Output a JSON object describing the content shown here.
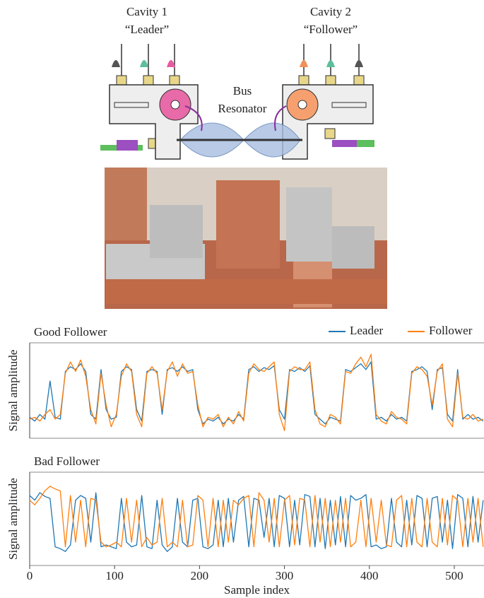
{
  "diagram": {
    "cavity1": {
      "title": "Cavity 1",
      "role": "“Leader”"
    },
    "cavity2": {
      "title": "Cavity 2",
      "role": "“Follower”"
    },
    "bus": {
      "line1": "Bus",
      "line2": "Resonator"
    }
  },
  "chart_data": [
    {
      "type": "line",
      "title": "Good Follower",
      "ylabel": "Signal amplitude",
      "legend": "upper right",
      "x": [
        0,
        6,
        12,
        18,
        24,
        30,
        36,
        42,
        48,
        54,
        60,
        66,
        72,
        78,
        84,
        90,
        96,
        102,
        108,
        114,
        120,
        126,
        132,
        138,
        144,
        150,
        156,
        162,
        168,
        174,
        180,
        186,
        192,
        198,
        204,
        210,
        216,
        222,
        228,
        234,
        240,
        246,
        252,
        258,
        264,
        270,
        276,
        282,
        288,
        294,
        300,
        306,
        312,
        318,
        324,
        330,
        336,
        342,
        348,
        354,
        360,
        366,
        372,
        378,
        384,
        390,
        396,
        402,
        408,
        414,
        420,
        426,
        432,
        438,
        444,
        450,
        456,
        462,
        468,
        474,
        480,
        486,
        492,
        498,
        504,
        510,
        516,
        522,
        528,
        534
      ],
      "xlim": [
        0,
        535
      ],
      "ylim": [
        0,
        1
      ],
      "series": [
        {
          "name": "Leader",
          "color": "#1f77b4",
          "values": [
            0.22,
            0.18,
            0.25,
            0.2,
            0.6,
            0.22,
            0.2,
            0.7,
            0.75,
            0.72,
            0.78,
            0.7,
            0.25,
            0.2,
            0.72,
            0.3,
            0.2,
            0.22,
            0.7,
            0.75,
            0.72,
            0.3,
            0.18,
            0.7,
            0.72,
            0.7,
            0.25,
            0.72,
            0.74,
            0.7,
            0.75,
            0.7,
            0.72,
            0.3,
            0.15,
            0.2,
            0.18,
            0.22,
            0.15,
            0.2,
            0.18,
            0.25,
            0.2,
            0.72,
            0.75,
            0.7,
            0.74,
            0.72,
            0.76,
            0.3,
            0.2,
            0.72,
            0.7,
            0.74,
            0.7,
            0.76,
            0.25,
            0.2,
            0.15,
            0.22,
            0.2,
            0.18,
            0.72,
            0.7,
            0.74,
            0.78,
            0.72,
            0.8,
            0.2,
            0.22,
            0.18,
            0.25,
            0.2,
            0.22,
            0.18,
            0.7,
            0.72,
            0.75,
            0.7,
            0.3,
            0.72,
            0.74,
            0.25,
            0.18,
            0.72,
            0.2,
            0.25,
            0.2,
            0.22,
            0.18
          ]
        },
        {
          "name": "Follower",
          "color": "#ff7f0e",
          "values": [
            0.2,
            0.22,
            0.18,
            0.25,
            0.3,
            0.2,
            0.25,
            0.68,
            0.8,
            0.7,
            0.82,
            0.65,
            0.3,
            0.15,
            0.68,
            0.35,
            0.12,
            0.25,
            0.65,
            0.78,
            0.7,
            0.25,
            0.12,
            0.68,
            0.75,
            0.68,
            0.3,
            0.7,
            0.8,
            0.65,
            0.78,
            0.68,
            0.7,
            0.35,
            0.12,
            0.22,
            0.2,
            0.25,
            0.12,
            0.22,
            0.15,
            0.28,
            0.18,
            0.68,
            0.78,
            0.72,
            0.7,
            0.75,
            0.8,
            0.25,
            0.08,
            0.7,
            0.75,
            0.72,
            0.72,
            0.8,
            0.3,
            0.15,
            0.12,
            0.25,
            0.22,
            0.15,
            0.7,
            0.68,
            0.78,
            0.85,
            0.75,
            0.88,
            0.25,
            0.18,
            0.15,
            0.28,
            0.22,
            0.2,
            0.15,
            0.68,
            0.75,
            0.72,
            0.65,
            0.35,
            0.7,
            0.78,
            0.2,
            0.12,
            0.68,
            0.22,
            0.2,
            0.25,
            0.18,
            0.2
          ]
        }
      ]
    },
    {
      "type": "line",
      "title": "Bad Follower",
      "ylabel": "Signal amplitude",
      "xlabel": "Sample index",
      "x": [
        0,
        6,
        12,
        18,
        24,
        30,
        36,
        42,
        48,
        54,
        60,
        66,
        72,
        78,
        84,
        90,
        96,
        102,
        108,
        114,
        120,
        126,
        132,
        138,
        144,
        150,
        156,
        162,
        168,
        174,
        180,
        186,
        192,
        198,
        204,
        210,
        216,
        222,
        228,
        234,
        240,
        246,
        252,
        258,
        264,
        270,
        276,
        282,
        288,
        294,
        300,
        306,
        312,
        318,
        324,
        330,
        336,
        342,
        348,
        354,
        360,
        366,
        372,
        378,
        384,
        390,
        396,
        402,
        408,
        414,
        420,
        426,
        432,
        438,
        444,
        450,
        456,
        462,
        468,
        474,
        480,
        486,
        492,
        498,
        504,
        510,
        516,
        522,
        528,
        534
      ],
      "xlim": [
        0,
        535
      ],
      "ylim": [
        0,
        1
      ],
      "xticks": [
        0,
        100,
        200,
        300,
        400,
        500
      ],
      "series": [
        {
          "name": "Leader",
          "color": "#1f77b4",
          "values": [
            0.75,
            0.7,
            0.78,
            0.74,
            0.72,
            0.2,
            0.18,
            0.15,
            0.22,
            0.7,
            0.75,
            0.72,
            0.25,
            0.78,
            0.2,
            0.22,
            0.2,
            0.18,
            0.72,
            0.25,
            0.2,
            0.22,
            0.75,
            0.2,
            0.18,
            0.7,
            0.22,
            0.15,
            0.2,
            0.72,
            0.25,
            0.2,
            0.7,
            0.72,
            0.2,
            0.18,
            0.22,
            0.7,
            0.2,
            0.72,
            0.25,
            0.7,
            0.74,
            0.2,
            0.72,
            0.7,
            0.3,
            0.72,
            0.2,
            0.75,
            0.72,
            0.2,
            0.7,
            0.22,
            0.76,
            0.74,
            0.2,
            0.72,
            0.18,
            0.7,
            0.22,
            0.74,
            0.2,
            0.75,
            0.7,
            0.72,
            0.76,
            0.2,
            0.22,
            0.18,
            0.2,
            0.72,
            0.25,
            0.2,
            0.7,
            0.22,
            0.75,
            0.72,
            0.2,
            0.72,
            0.74,
            0.25,
            0.7,
            0.18,
            0.76,
            0.72,
            0.2,
            0.74,
            0.25,
            0.7
          ]
        },
        {
          "name": "Follower",
          "color": "#ff7f0e",
          "values": [
            0.7,
            0.65,
            0.72,
            0.8,
            0.85,
            0.82,
            0.8,
            0.2,
            0.75,
            0.25,
            0.7,
            0.2,
            0.72,
            0.7,
            0.25,
            0.2,
            0.22,
            0.25,
            0.2,
            0.72,
            0.25,
            0.7,
            0.2,
            0.3,
            0.22,
            0.25,
            0.72,
            0.2,
            0.25,
            0.2,
            0.7,
            0.2,
            0.22,
            0.75,
            0.7,
            0.2,
            0.72,
            0.2,
            0.7,
            0.25,
            0.7,
            0.65,
            0.72,
            0.75,
            0.2,
            0.78,
            0.7,
            0.25,
            0.72,
            0.2,
            0.7,
            0.75,
            0.22,
            0.72,
            0.7,
            0.2,
            0.75,
            0.25,
            0.72,
            0.2,
            0.7,
            0.25,
            0.72,
            0.2,
            0.25,
            0.7,
            0.2,
            0.72,
            0.25,
            0.7,
            0.22,
            0.2,
            0.7,
            0.75,
            0.2,
            0.72,
            0.25,
            0.2,
            0.72,
            0.25,
            0.2,
            0.72,
            0.22,
            0.75,
            0.7,
            0.2,
            0.72,
            0.25,
            0.72,
            0.2
          ]
        }
      ]
    }
  ]
}
